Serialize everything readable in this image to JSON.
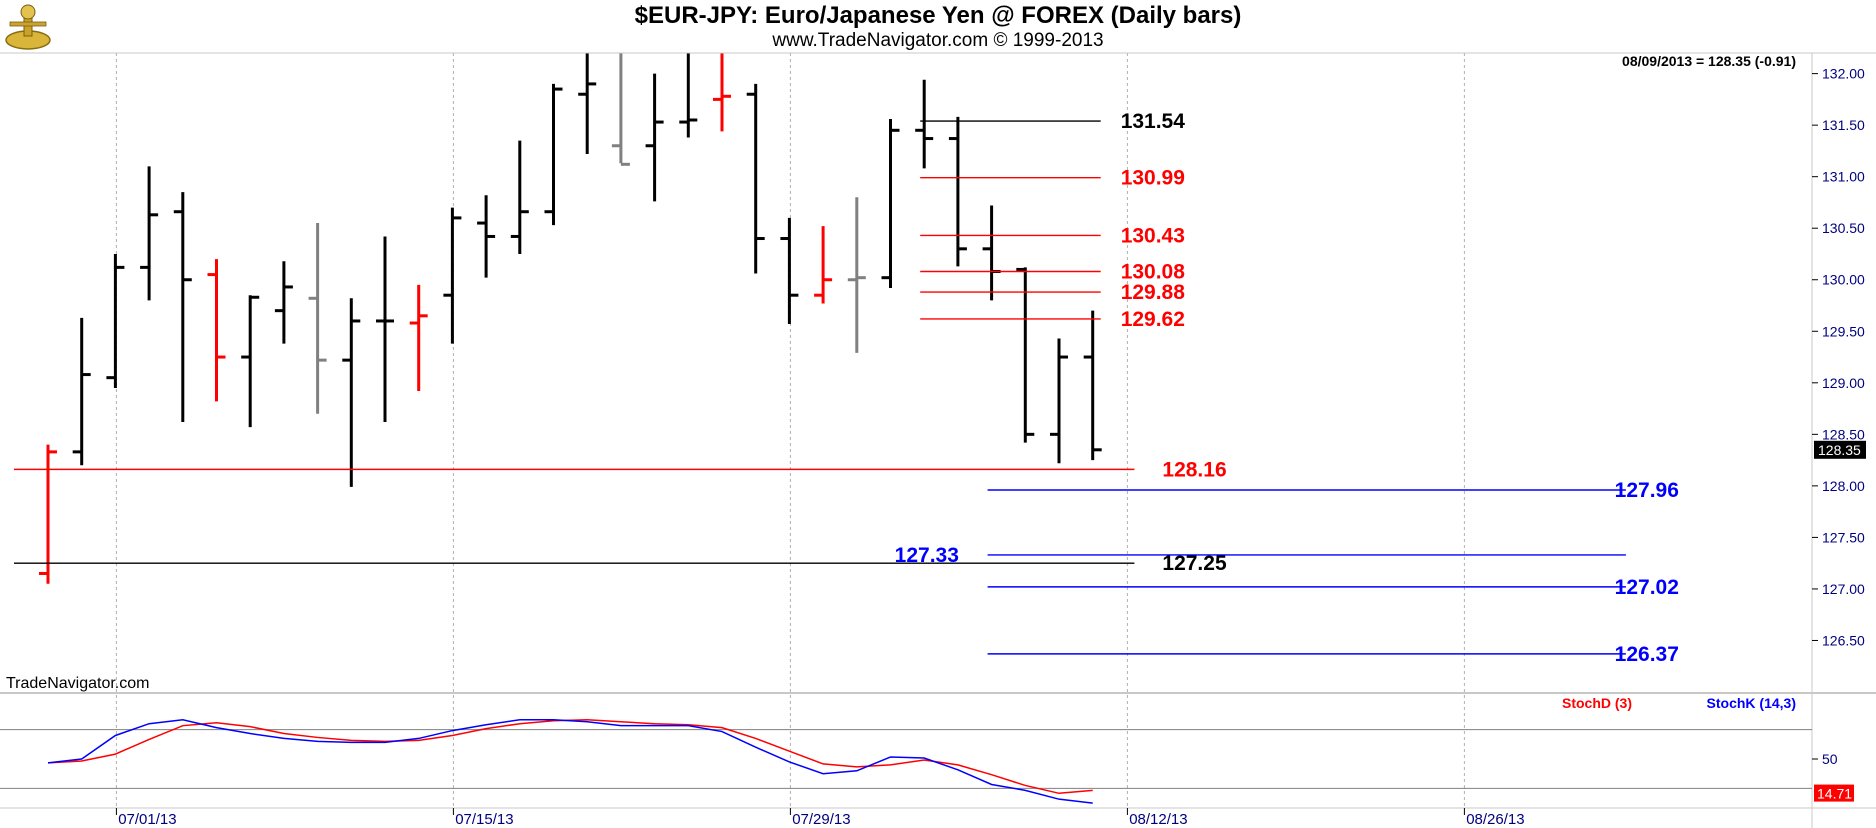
{
  "header": {
    "title": "$EUR-JPY:  Euro/Japanese Yen @ FOREX  (Daily bars)",
    "subtitle": "www.TradeNavigator.com © 1999-2013",
    "last_quote": "08/09/2013 = 128.35 (-0.91)",
    "brand": "TradeNavigator.com"
  },
  "colors": {
    "bar_black": "#000000",
    "bar_red": "#ff0000",
    "bar_gray": "#808080",
    "fib_red": "#ff0000",
    "projection_blue": "#0000ff",
    "stoch_d": "#ff0000",
    "stoch_k": "#0000ff",
    "grid": "#b0b0b0"
  },
  "chart_data": [
    {
      "type": "ohlc",
      "title": "$EUR-JPY:  Euro/Japanese Yen @ FOREX  (Daily bars)",
      "ylim": [
        126.0,
        132.2
      ],
      "y_ticks": [
        "132.00",
        "131.50",
        "131.00",
        "130.50",
        "130.00",
        "129.50",
        "129.00",
        "128.50",
        "128.00",
        "127.50",
        "127.00",
        "126.50"
      ],
      "y_tick_values": [
        132.0,
        131.5,
        131.0,
        130.5,
        130.0,
        129.5,
        129.0,
        128.5,
        128.0,
        127.5,
        127.0,
        126.5
      ],
      "x_ticks": [
        {
          "label": "07/01/13",
          "bar": 2
        },
        {
          "label": "07/15/13",
          "bar": 12
        },
        {
          "label": "07/29/13",
          "bar": 22
        },
        {
          "label": "08/12/13",
          "bar": 32
        },
        {
          "label": "08/26/13",
          "bar": 42
        }
      ],
      "bar_count_span": 50,
      "last_price_label": "128.35",
      "bars": [
        {
          "o": 127.15,
          "h": 128.4,
          "l": 127.05,
          "c": 128.33,
          "color": "red"
        },
        {
          "o": 128.33,
          "h": 129.63,
          "l": 128.2,
          "c": 129.08,
          "color": "black"
        },
        {
          "o": 129.05,
          "h": 130.25,
          "l": 128.95,
          "c": 130.12,
          "color": "black"
        },
        {
          "o": 130.12,
          "h": 131.1,
          "l": 129.8,
          "c": 130.63,
          "color": "black"
        },
        {
          "o": 130.66,
          "h": 130.85,
          "l": 128.62,
          "c": 130.0,
          "color": "black"
        },
        {
          "o": 130.05,
          "h": 130.2,
          "l": 128.82,
          "c": 129.25,
          "color": "red"
        },
        {
          "o": 129.25,
          "h": 129.85,
          "l": 128.57,
          "c": 129.83,
          "color": "black"
        },
        {
          "o": 129.7,
          "h": 130.18,
          "l": 129.38,
          "c": 129.93,
          "color": "black"
        },
        {
          "o": 129.82,
          "h": 130.55,
          "l": 128.7,
          "c": 129.22,
          "color": "gray"
        },
        {
          "o": 129.22,
          "h": 129.82,
          "l": 127.99,
          "c": 129.6,
          "color": "black"
        },
        {
          "o": 129.6,
          "h": 130.42,
          "l": 128.62,
          "c": 129.6,
          "color": "black"
        },
        {
          "o": 129.58,
          "h": 129.95,
          "l": 128.92,
          "c": 129.65,
          "color": "red"
        },
        {
          "o": 129.85,
          "h": 130.7,
          "l": 129.38,
          "c": 130.6,
          "color": "black"
        },
        {
          "o": 130.55,
          "h": 130.82,
          "l": 130.02,
          "c": 130.42,
          "color": "black"
        },
        {
          "o": 130.42,
          "h": 131.35,
          "l": 130.25,
          "c": 130.66,
          "color": "black"
        },
        {
          "o": 130.66,
          "h": 131.9,
          "l": 130.53,
          "c": 131.85,
          "color": "black"
        },
        {
          "o": 131.8,
          "h": 132.2,
          "l": 131.22,
          "c": 131.9,
          "color": "black"
        },
        {
          "o": 131.3,
          "h": 132.2,
          "l": 131.13,
          "c": 131.12,
          "color": "gray"
        },
        {
          "o": 131.3,
          "h": 132.0,
          "l": 130.76,
          "c": 131.53,
          "color": "black"
        },
        {
          "o": 131.53,
          "h": 132.2,
          "l": 131.38,
          "c": 131.55,
          "color": "black"
        },
        {
          "o": 131.75,
          "h": 132.2,
          "l": 131.44,
          "c": 131.78,
          "color": "red"
        },
        {
          "o": 131.8,
          "h": 131.9,
          "l": 130.06,
          "c": 130.4,
          "color": "black"
        },
        {
          "o": 130.4,
          "h": 130.6,
          "l": 129.57,
          "c": 129.85,
          "color": "black"
        },
        {
          "o": 129.85,
          "h": 130.52,
          "l": 129.77,
          "c": 130.0,
          "color": "red"
        },
        {
          "o": 130.0,
          "h": 130.8,
          "l": 129.29,
          "c": 130.02,
          "color": "gray"
        },
        {
          "o": 130.02,
          "h": 131.56,
          "l": 129.92,
          "c": 131.45,
          "color": "black"
        },
        {
          "o": 131.45,
          "h": 131.94,
          "l": 131.08,
          "c": 131.37,
          "color": "black"
        },
        {
          "o": 131.37,
          "h": 131.58,
          "l": 130.13,
          "c": 130.3,
          "color": "black"
        },
        {
          "o": 130.3,
          "h": 130.72,
          "l": 129.8,
          "c": 130.08,
          "color": "black"
        },
        {
          "o": 130.1,
          "h": 130.12,
          "l": 128.42,
          "c": 128.5,
          "color": "black"
        },
        {
          "o": 128.5,
          "h": 129.43,
          "l": 128.22,
          "c": 129.25,
          "color": "black"
        },
        {
          "o": 129.25,
          "h": 129.7,
          "l": 128.25,
          "c": 128.35,
          "color": "black"
        }
      ],
      "levels": [
        {
          "label": "131.54",
          "value": 131.54,
          "color": "black",
          "from_bar": 26,
          "to_bar": 31
        },
        {
          "label": "130.99",
          "value": 130.99,
          "color": "red",
          "from_bar": 26,
          "to_bar": 31
        },
        {
          "label": "130.43",
          "value": 130.43,
          "color": "red",
          "from_bar": 26,
          "to_bar": 31
        },
        {
          "label": "130.08",
          "value": 130.08,
          "color": "red",
          "from_bar": 26,
          "to_bar": 31
        },
        {
          "label": "129.88",
          "value": 129.88,
          "color": "red",
          "from_bar": 26,
          "to_bar": 31
        },
        {
          "label": "129.62",
          "value": 129.62,
          "color": "red",
          "from_bar": 26,
          "to_bar": 31
        },
        {
          "label": "128.16",
          "value": 128.16,
          "color": "red",
          "from_bar": -1,
          "to_bar": 32
        },
        {
          "label": "127.25",
          "value": 127.25,
          "color": "black",
          "from_bar": -1,
          "to_bar": 32
        },
        {
          "label": "127.96",
          "value": 127.96,
          "color": "blue",
          "from_bar": 28,
          "to_bar": 47
        },
        {
          "label": "127.33",
          "value": 127.33,
          "color": "blue",
          "from_bar": 28,
          "to_bar": 47
        },
        {
          "label": "127.02",
          "value": 127.02,
          "color": "blue",
          "from_bar": 28,
          "to_bar": 47
        },
        {
          "label": "126.37",
          "value": 126.37,
          "color": "blue",
          "from_bar": 28,
          "to_bar": 47
        }
      ]
    },
    {
      "type": "line",
      "title": "StochD (3)  StochK (14,3)",
      "ylim": [
        0,
        100
      ],
      "y_ticks": [
        "50"
      ],
      "y_tick_values": [
        50
      ],
      "reference_lines": [
        80,
        20
      ],
      "last_value_label": "14.71",
      "series": [
        {
          "name": "StochD (3)",
          "color": "red",
          "values": [
            46,
            48,
            55,
            70,
            84,
            87,
            83,
            76,
            72,
            69,
            68,
            69,
            74,
            81,
            86,
            89,
            90,
            88,
            86,
            85,
            82,
            71,
            58,
            45,
            42,
            44,
            49,
            44,
            34,
            23,
            15,
            18
          ]
        },
        {
          "name": "StochK (14,3)",
          "color": "blue",
          "values": [
            46,
            50,
            74,
            86,
            90,
            82,
            76,
            71,
            68,
            67,
            67,
            71,
            79,
            85,
            90,
            90,
            88,
            84,
            84,
            84,
            78,
            62,
            47,
            35,
            38,
            52,
            51,
            39,
            24,
            18,
            9,
            5
          ]
        }
      ]
    }
  ]
}
